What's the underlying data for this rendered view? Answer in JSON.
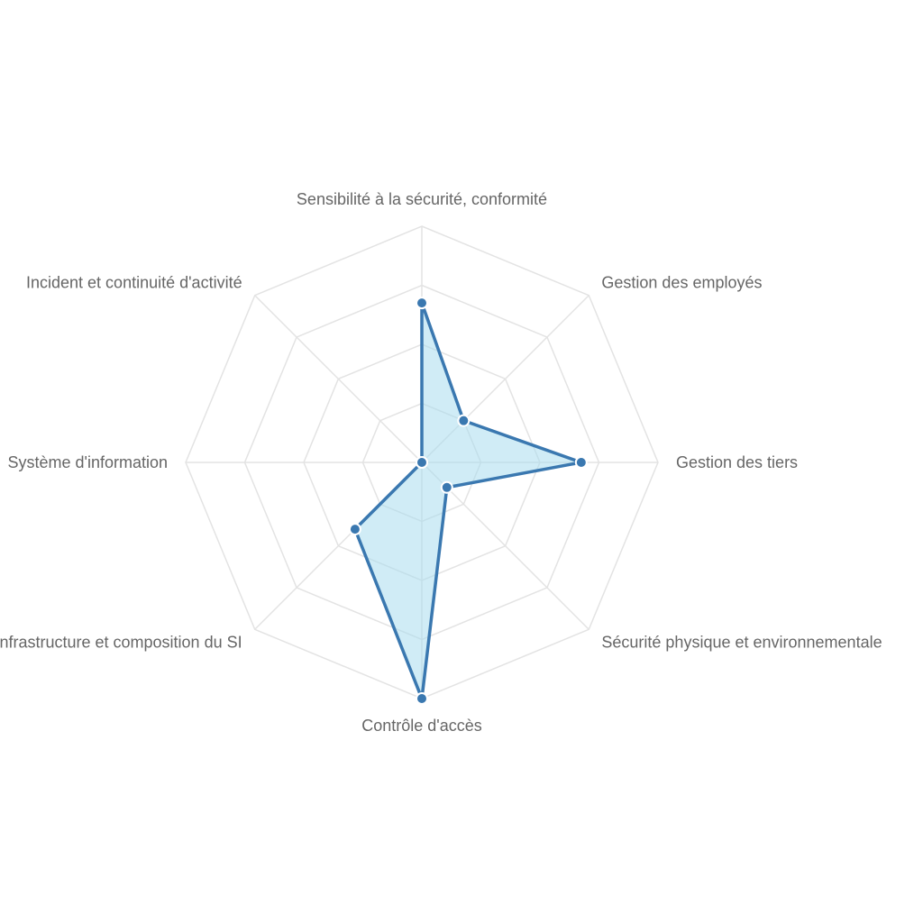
{
  "chart_data": {
    "type": "radar",
    "axes": [
      "Sensibilité à la sécurité, conformité",
      "Gestion des employés",
      "Gestion des tiers",
      "Sécurité physique et environnementale",
      "Contrôle d'accès",
      "Infrastructure et composition du SI",
      "Système d'information",
      "Incident et continuité d'activité"
    ],
    "series": [
      {
        "values": [
          2.7,
          1.0,
          2.7,
          0.6,
          4.0,
          1.6,
          0.0,
          0.0
        ],
        "stroke_color": "#3a78b0",
        "fill_color": "#a9dcef",
        "point_color": "#3a78b0"
      }
    ],
    "range": [
      0,
      4
    ],
    "grid_rings": 4,
    "grid": true,
    "legend": "none"
  }
}
